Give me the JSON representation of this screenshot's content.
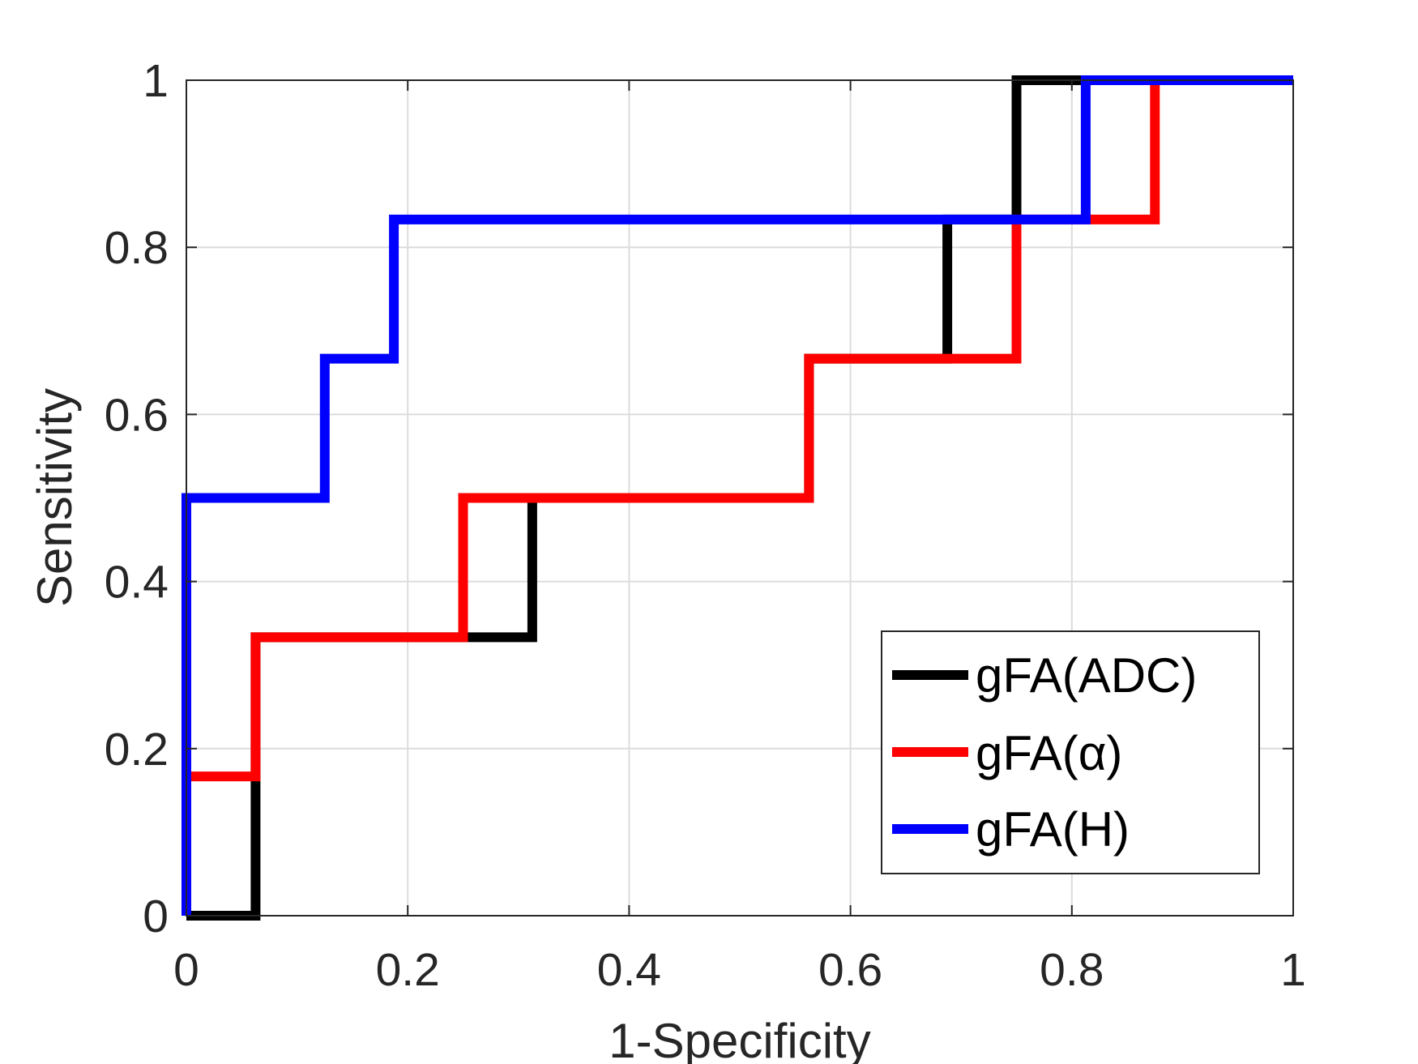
{
  "chart_data": {
    "type": "line",
    "step": true,
    "title": "",
    "xlabel": "1-Specificity",
    "ylabel": "Sensitivity",
    "xlim": [
      0,
      1
    ],
    "ylim": [
      0,
      1
    ],
    "x_ticks": [
      "0",
      "0.2",
      "0.4",
      "0.6",
      "0.8",
      "1"
    ],
    "y_ticks": [
      "0",
      "0.2",
      "0.4",
      "0.6",
      "0.8",
      "1"
    ],
    "grid": true,
    "legend_position": "bottom-right",
    "series": [
      {
        "name": "gFA(ADC)",
        "color": "#000000",
        "points": [
          [
            0,
            0
          ],
          [
            0.0625,
            0
          ],
          [
            0.0625,
            0.1667
          ],
          [
            0.0625,
            0.3333
          ],
          [
            0.25,
            0.3333
          ],
          [
            0.3125,
            0.3333
          ],
          [
            0.3125,
            0.5
          ],
          [
            0.5625,
            0.5
          ],
          [
            0.5625,
            0.6667
          ],
          [
            0.6875,
            0.6667
          ],
          [
            0.6875,
            0.8333
          ],
          [
            0.75,
            0.8333
          ],
          [
            0.75,
            1
          ],
          [
            0.8125,
            1
          ],
          [
            1,
            1
          ]
        ]
      },
      {
        "name": "gFA(α)",
        "color": "#ff0000",
        "points": [
          [
            0,
            0.1667
          ],
          [
            0.0625,
            0.1667
          ],
          [
            0.0625,
            0.3333
          ],
          [
            0.25,
            0.3333
          ],
          [
            0.25,
            0.5
          ],
          [
            0.5625,
            0.5
          ],
          [
            0.5625,
            0.6667
          ],
          [
            0.75,
            0.6667
          ],
          [
            0.75,
            0.8333
          ],
          [
            0.875,
            0.8333
          ],
          [
            0.875,
            1
          ],
          [
            1,
            1
          ]
        ]
      },
      {
        "name": "gFA(H)",
        "color": "#0000ff",
        "points": [
          [
            0,
            0
          ],
          [
            0,
            0.5
          ],
          [
            0.125,
            0.5
          ],
          [
            0.125,
            0.6667
          ],
          [
            0.1875,
            0.6667
          ],
          [
            0.1875,
            0.8333
          ],
          [
            0.8125,
            0.8333
          ],
          [
            0.8125,
            1
          ],
          [
            1,
            1
          ]
        ]
      }
    ]
  }
}
